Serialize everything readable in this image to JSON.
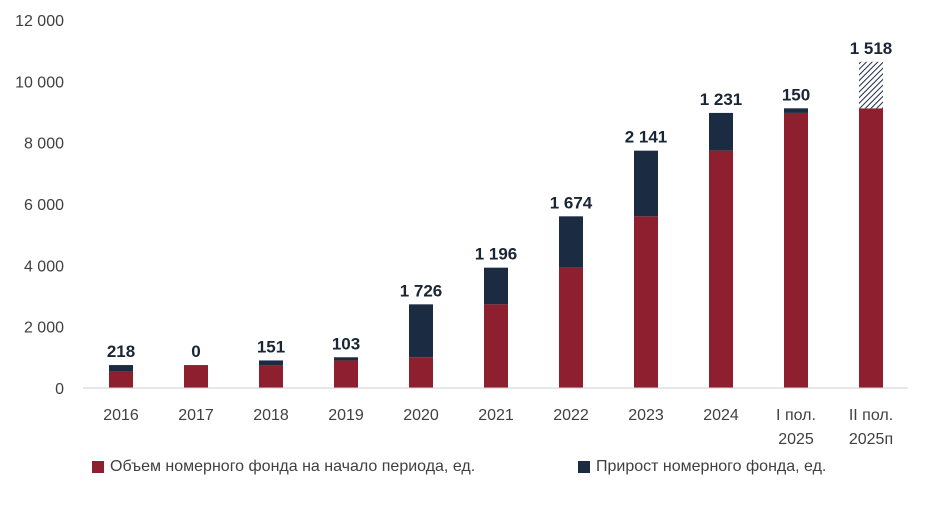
{
  "chart_data": {
    "type": "bar",
    "stacked": true,
    "title": "",
    "xlabel": "",
    "ylabel": "",
    "ylim": [
      0,
      12000
    ],
    "yticks": [
      0,
      2000,
      4000,
      6000,
      8000,
      10000,
      12000
    ],
    "ytick_labels": [
      "0",
      "2 000",
      "4 000",
      "6 000",
      "8 000",
      "10 000",
      "12 000"
    ],
    "categories": [
      [
        "2016"
      ],
      [
        "2017"
      ],
      [
        "2018"
      ],
      [
        "2019"
      ],
      [
        "2020"
      ],
      [
        "2021"
      ],
      [
        "2022"
      ],
      [
        "2023"
      ],
      [
        "2024"
      ],
      [
        "I пол.",
        "2025"
      ],
      [
        "II пол.",
        "2025п"
      ]
    ],
    "series": [
      {
        "name": "Объем номерного фонда на начало периода, ед.",
        "color": "#8e1f2e",
        "values": [
          530,
          748,
          748,
          899,
          1002,
          2728,
          3924,
          5598,
          7739,
          8970,
          9120
        ]
      },
      {
        "name": "Прирост номерного фонда, ед.",
        "color": "#1a2b42",
        "values": [
          218,
          0,
          151,
          103,
          1726,
          1196,
          1674,
          2141,
          1231,
          150,
          1518
        ],
        "forecast_last": true
      }
    ],
    "data_labels": [
      "218",
      "0",
      "151",
      "103",
      "1 726",
      "1 196",
      "1 674",
      "2 141",
      "1 231",
      "150",
      "1 518"
    ],
    "legend_position": "bottom",
    "grid": false
  }
}
